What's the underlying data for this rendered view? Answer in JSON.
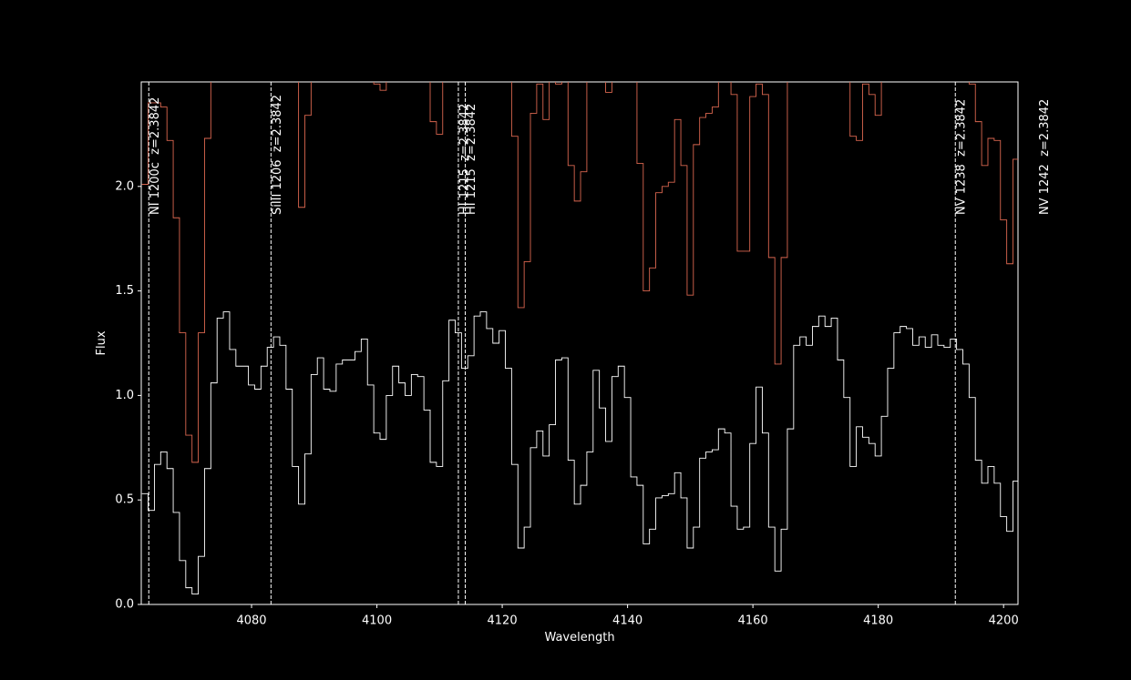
{
  "chart_data": {
    "type": "step",
    "x_label": "Wavelength",
    "y_label": "Flux",
    "xlim": [
      4062.4,
      4202.3
    ],
    "ylim": [
      0,
      2.5
    ],
    "xticks": [
      4080,
      4100,
      4120,
      4140,
      4160,
      4180,
      4200
    ],
    "yticks": [
      {
        "value": 0,
        "label": "0.0"
      },
      {
        "value": 0.5,
        "label": "0.5"
      },
      {
        "value": 1,
        "label": "1.0"
      },
      {
        "value": 1.5,
        "label": "1.5"
      },
      {
        "value": 2,
        "label": "2.0"
      }
    ],
    "x": [
      4063,
      4064,
      4065,
      4066,
      4067,
      4068,
      4069,
      4070,
      4071,
      4072,
      4073,
      4074,
      4075,
      4076,
      4077,
      4078,
      4079,
      4080,
      4081,
      4082,
      4083,
      4084,
      4085,
      4086,
      4087,
      4088,
      4089,
      4090,
      4091,
      4092,
      4093,
      4094,
      4095,
      4096,
      4097,
      4098,
      4099,
      4100,
      4101,
      4102,
      4103,
      4104,
      4105,
      4106,
      4107,
      4108,
      4109,
      4110,
      4111,
      4112,
      4113,
      4114,
      4115,
      4116,
      4117,
      4118,
      4119,
      4120,
      4121,
      4122,
      4123,
      4124,
      4125,
      4126,
      4127,
      4128,
      4129,
      4130,
      4131,
      4132,
      4133,
      4134,
      4135,
      4136,
      4137,
      4138,
      4139,
      4140,
      4141,
      4142,
      4143,
      4144,
      4145,
      4146,
      4147,
      4148,
      4149,
      4150,
      4151,
      4152,
      4153,
      4154,
      4155,
      4156,
      4157,
      4158,
      4159,
      4160,
      4161,
      4162,
      4163,
      4164,
      4165,
      4166,
      4167,
      4168,
      4169,
      4170,
      4171,
      4172,
      4173,
      4174,
      4175,
      4176,
      4177,
      4178,
      4179,
      4180,
      4181,
      4182,
      4183,
      4184,
      4185,
      4186,
      4187,
      4188,
      4189,
      4190,
      4191,
      4192,
      4193,
      4194,
      4195,
      4196,
      4197,
      4198,
      4199,
      4200,
      4201,
      4202,
      4203
    ],
    "series": [
      {
        "color": "#d9664f",
        "values": [
          2.01,
          2.4,
          2.4,
          2.38,
          2.22,
          1.85,
          1.3,
          0.81,
          0.68,
          1.3,
          2.23,
          2.6,
          2.6,
          2.6,
          2.6,
          2.6,
          2.6,
          2.6,
          2.6,
          2.6,
          2.6,
          2.6,
          2.6,
          2.6,
          2.6,
          1.9,
          2.34,
          2.6,
          2.6,
          2.6,
          2.6,
          2.6,
          2.6,
          2.6,
          2.6,
          2.6,
          2.6,
          2.49,
          2.46,
          2.6,
          2.6,
          2.6,
          2.6,
          2.6,
          2.6,
          2.6,
          2.31,
          2.25,
          2.6,
          2.6,
          2.6,
          2.6,
          2.6,
          2.6,
          2.6,
          2.6,
          2.6,
          2.6,
          2.6,
          2.24,
          1.42,
          1.64,
          2.35,
          2.49,
          2.32,
          2.6,
          2.49,
          2.6,
          2.1,
          1.93,
          2.07,
          2.6,
          2.6,
          2.6,
          2.45,
          2.6,
          2.6,
          2.6,
          2.6,
          2.11,
          1.5,
          1.61,
          1.97,
          2.0,
          2.02,
          2.32,
          2.1,
          1.48,
          2.2,
          2.33,
          2.35,
          2.38,
          2.6,
          2.6,
          2.44,
          1.69,
          1.69,
          2.43,
          2.49,
          2.44,
          1.66,
          1.15,
          1.66,
          2.6,
          2.6,
          2.6,
          2.6,
          2.6,
          2.6,
          2.6,
          2.6,
          2.6,
          2.6,
          2.24,
          2.22,
          2.49,
          2.44,
          2.34,
          2.6,
          2.6,
          2.6,
          2.6,
          2.6,
          2.6,
          2.6,
          2.6,
          2.6,
          2.6,
          2.6,
          2.6,
          2.6,
          2.6,
          2.49,
          2.31,
          2.1,
          2.23,
          2.22,
          1.84,
          1.63,
          2.13,
          2.6
        ]
      },
      {
        "color": "#ffffff",
        "values": [
          0.53,
          0.45,
          0.67,
          0.73,
          0.65,
          0.44,
          0.21,
          0.08,
          0.05,
          0.23,
          0.65,
          1.06,
          1.37,
          1.4,
          1.22,
          1.14,
          1.14,
          1.05,
          1.03,
          1.14,
          1.23,
          1.28,
          1.24,
          1.03,
          0.66,
          0.48,
          0.72,
          1.1,
          1.18,
          1.03,
          1.02,
          1.15,
          1.17,
          1.17,
          1.21,
          1.27,
          1.05,
          0.82,
          0.79,
          1.0,
          1.14,
          1.06,
          1.0,
          1.1,
          1.09,
          0.93,
          0.68,
          0.66,
          1.07,
          1.36,
          1.3,
          1.13,
          1.19,
          1.38,
          1.4,
          1.32,
          1.25,
          1.31,
          1.13,
          0.67,
          0.27,
          0.37,
          0.75,
          0.83,
          0.71,
          0.86,
          1.17,
          1.18,
          0.69,
          0.48,
          0.57,
          0.73,
          1.12,
          0.94,
          0.78,
          1.09,
          1.14,
          0.99,
          0.61,
          0.57,
          0.29,
          0.36,
          0.51,
          0.52,
          0.53,
          0.63,
          0.51,
          0.27,
          0.37,
          0.7,
          0.73,
          0.74,
          0.84,
          0.82,
          0.47,
          0.36,
          0.37,
          0.77,
          1.04,
          0.82,
          0.37,
          0.16,
          0.36,
          0.84,
          1.24,
          1.28,
          1.24,
          1.33,
          1.38,
          1.33,
          1.37,
          1.17,
          0.99,
          0.66,
          0.85,
          0.8,
          0.77,
          0.71,
          0.9,
          1.13,
          1.3,
          1.33,
          1.32,
          1.24,
          1.28,
          1.23,
          1.29,
          1.24,
          1.23,
          1.27,
          1.22,
          1.15,
          0.99,
          0.69,
          0.58,
          0.66,
          0.58,
          0.42,
          0.35,
          0.59,
          0.98
        ]
      }
    ],
    "lines": [
      {
        "x": 4063.6,
        "label": "NI 1200c  z=2.3842"
      },
      {
        "x": 4083.1,
        "label": "SiIII 1206  z=2.3842"
      },
      {
        "x": 4113.0,
        "label": "HI 1215  z=2.3842"
      },
      {
        "x": 4114.1,
        "label": "HI 1215  z=2.3842"
      },
      {
        "x": 4192.3,
        "label": "NV 1238  z=2.3842"
      },
      {
        "x": 4205.6,
        "label": "NV 1242  z=2.3842"
      }
    ]
  }
}
